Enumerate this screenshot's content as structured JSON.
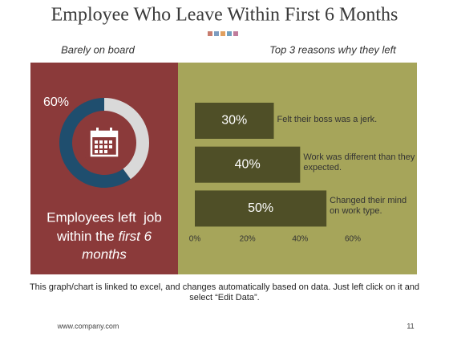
{
  "slide": {
    "title": "Employee Who Leave Within First 6 Months",
    "left_heading": "Barely on board",
    "right_heading": "Top 3 reasons why they left",
    "statement": [
      "Employees left  job",
      "within the ",
      "first 6",
      "months"
    ],
    "note": "This graph/chart is linked to excel, and changes automatically based on data. Just left click on it and select “Edit Data”.",
    "website": "www.company.com",
    "page_number": "11"
  },
  "chart_data": [
    {
      "type": "donut",
      "values": [
        60,
        40
      ],
      "value_labels": [
        "60%",
        null
      ],
      "colors": [
        "#1f4e6e",
        "#d9d9d9"
      ]
    },
    {
      "type": "hbar",
      "categories": [
        "Felt their boss was a jerk.",
        "Work was different than they expected.",
        "Changed their mind on work type."
      ],
      "values": [
        30,
        40,
        50
      ],
      "value_labels": [
        "30%",
        "40%",
        "50%"
      ],
      "color": "#4f4f27",
      "xlim": [
        0,
        60
      ],
      "xticks": [
        {
          "value": 0,
          "label": "0%"
        },
        {
          "value": 20,
          "label": "20%"
        },
        {
          "value": 40,
          "label": "40%"
        },
        {
          "value": 60,
          "label": "60%"
        }
      ]
    }
  ]
}
